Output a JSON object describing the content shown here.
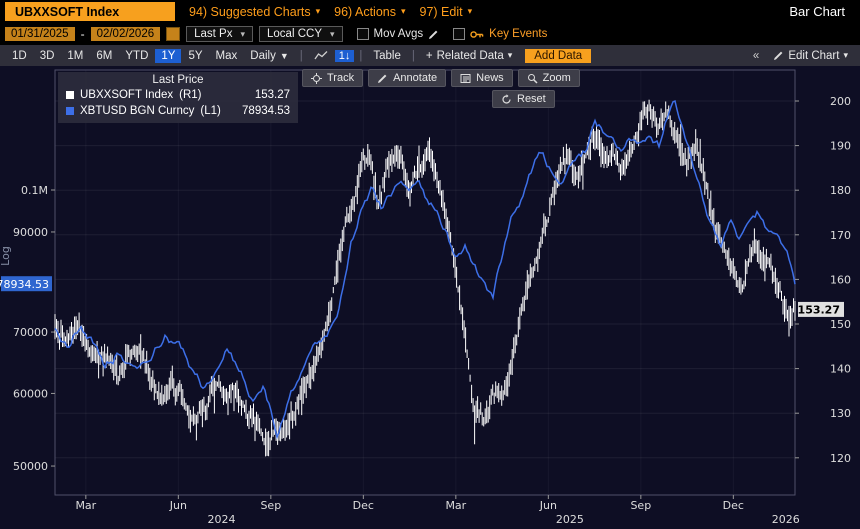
{
  "titlebar": {
    "security": "UBXXSOFT Index",
    "menus": [
      {
        "label": "94) Suggested Charts"
      },
      {
        "label": "96) Actions"
      },
      {
        "label": "97) Edit"
      }
    ],
    "view_name": "Bar Chart"
  },
  "controls": {
    "date_from": "01/31/2025",
    "date_separator": "-",
    "date_to": "02/02/2026",
    "price_field": "Last Px",
    "currency": "Local CCY",
    "mov_avgs_label": "Mov Avgs",
    "key_events_label": "Key Events"
  },
  "toolbar": {
    "ranges": [
      "1D",
      "3D",
      "1M",
      "6M",
      "YTD",
      "1Y",
      "5Y",
      "Max"
    ],
    "selected_range": "1Y",
    "period": "Daily",
    "bar_style_label": "1↓",
    "table_label": "Table",
    "related_data_label": "Related Data",
    "add_data_label": "Add Data",
    "edit_chart_label": "Edit Chart"
  },
  "chart_tools": {
    "track": "Track",
    "annotate": "Annotate",
    "news": "News",
    "zoom": "Zoom",
    "reset": "Reset"
  },
  "legend": {
    "title": "Last Price",
    "series": [
      {
        "name": "UBXXSOFT Index",
        "axis": "(R1)",
        "value": "153.27",
        "color": "#ffffff"
      },
      {
        "name": "XBTUSD BGN Curncy",
        "axis": "(L1)",
        "value": "78934.53",
        "color": "#3d6fe8"
      }
    ]
  },
  "colors": {
    "amber": "#f7a01e",
    "selected_blue": "#1d5fd2",
    "badge_blue": "#2f66d0",
    "chart_bg": "#0e0e24"
  },
  "chart_data": {
    "type": "line",
    "title": "Last Price",
    "x_axis": {
      "range_months": 24,
      "ticks": [
        {
          "label": "Mar",
          "t": 1
        },
        {
          "label": "Jun",
          "t": 4
        },
        {
          "label": "Sep",
          "t": 7
        },
        {
          "label": "Dec",
          "t": 10
        },
        {
          "label": "Mar",
          "t": 13
        },
        {
          "label": "Jun",
          "t": 16
        },
        {
          "label": "Sep",
          "t": 19
        },
        {
          "label": "Dec",
          "t": 22
        }
      ],
      "years": [
        {
          "label": "2024",
          "t": 5.4
        },
        {
          "label": "2025",
          "t": 16.7
        },
        {
          "label": "2026",
          "t": 23.7
        }
      ]
    },
    "left_axis": {
      "scale": "log",
      "scale_label": "Log",
      "ticks": [
        {
          "label": "0.1M",
          "v": 100000
        },
        {
          "label": "90000",
          "v": 90000
        },
        {
          "label": "70000",
          "v": 70000
        },
        {
          "label": "60000",
          "v": 60000
        },
        {
          "label": "50000",
          "v": 50000
        }
      ],
      "last_value": 78934.53,
      "last_label": "78934.53"
    },
    "right_axis": {
      "scale": "linear",
      "ticks": [
        200,
        190,
        180,
        170,
        160,
        150,
        140,
        130,
        120
      ],
      "last_value": 153.27,
      "last_label": "153.27"
    },
    "series": [
      {
        "name": "UBXXSOFT Index",
        "axis": "R1",
        "style": "bars",
        "color": "#ffffff",
        "anchors": [
          [
            0,
            151
          ],
          [
            0.4,
            146
          ],
          [
            0.8,
            149
          ],
          [
            1.2,
            143
          ],
          [
            1.6,
            145
          ],
          [
            2,
            141
          ],
          [
            2.5,
            143
          ],
          [
            3,
            138
          ],
          [
            3.4,
            135
          ],
          [
            3.8,
            137
          ],
          [
            4.2,
            133
          ],
          [
            4.6,
            131
          ],
          [
            5,
            136
          ],
          [
            5.4,
            139
          ],
          [
            5.8,
            137
          ],
          [
            6.2,
            133
          ],
          [
            6.6,
            128
          ],
          [
            7,
            125
          ],
          [
            7.4,
            129
          ],
          [
            7.8,
            132
          ],
          [
            8.2,
            136
          ],
          [
            8.6,
            142
          ],
          [
            9,
            155
          ],
          [
            9.4,
            170
          ],
          [
            9.8,
            180
          ],
          [
            10.2,
            186
          ],
          [
            10.5,
            178
          ],
          [
            10.8,
            184
          ],
          [
            11.2,
            189
          ],
          [
            11.5,
            181
          ],
          [
            11.8,
            186
          ],
          [
            12.1,
            191
          ],
          [
            12.4,
            183
          ],
          [
            12.7,
            174
          ],
          [
            13,
            163
          ],
          [
            13.3,
            148
          ],
          [
            13.6,
            133
          ],
          [
            13.9,
            129
          ],
          [
            14.2,
            136
          ],
          [
            14.5,
            132
          ],
          [
            14.8,
            141
          ],
          [
            15.1,
            150
          ],
          [
            15.4,
            158
          ],
          [
            15.7,
            166
          ],
          [
            16,
            174
          ],
          [
            16.3,
            182
          ],
          [
            16.6,
            188
          ],
          [
            16.9,
            181
          ],
          [
            17.2,
            187
          ],
          [
            17.5,
            193
          ],
          [
            17.8,
            187
          ],
          [
            18.1,
            191
          ],
          [
            18.4,
            185
          ],
          [
            18.7,
            189
          ],
          [
            19,
            194
          ],
          [
            19.3,
            198
          ],
          [
            19.6,
            193
          ],
          [
            19.9,
            197
          ],
          [
            20.2,
            191
          ],
          [
            20.5,
            186
          ],
          [
            20.8,
            190
          ],
          [
            21.1,
            181
          ],
          [
            21.4,
            174
          ],
          [
            21.7,
            170
          ],
          [
            22,
            165
          ],
          [
            22.3,
            160
          ],
          [
            22.6,
            170
          ],
          [
            22.9,
            166
          ],
          [
            23.2,
            161
          ],
          [
            23.5,
            156
          ],
          [
            23.8,
            149
          ],
          [
            24,
            153.27
          ]
        ]
      },
      {
        "name": "XBTUSD BGN Curncy",
        "axis": "L1",
        "style": "line",
        "color": "#3d6fe8",
        "anchors": [
          [
            0,
            70000
          ],
          [
            0.4,
            67000
          ],
          [
            0.8,
            71500
          ],
          [
            1.2,
            69000
          ],
          [
            1.6,
            64500
          ],
          [
            2,
            66500
          ],
          [
            2.4,
            63500
          ],
          [
            2.8,
            64500
          ],
          [
            3.2,
            67500
          ],
          [
            3.6,
            70500
          ],
          [
            4,
            68000
          ],
          [
            4.4,
            64000
          ],
          [
            4.8,
            61000
          ],
          [
            5.2,
            64500
          ],
          [
            5.6,
            67500
          ],
          [
            6,
            64000
          ],
          [
            6.4,
            59000
          ],
          [
            6.8,
            60500
          ],
          [
            7.2,
            54500
          ],
          [
            7.6,
            60000
          ],
          [
            8,
            63500
          ],
          [
            8.4,
            67000
          ],
          [
            8.8,
            69500
          ],
          [
            9.2,
            75000
          ],
          [
            9.6,
            88000
          ],
          [
            10,
            97000
          ],
          [
            10.3,
            101500
          ],
          [
            10.6,
            96000
          ],
          [
            10.9,
            99500
          ],
          [
            11.2,
            104500
          ],
          [
            11.5,
            102000
          ],
          [
            11.8,
            105000
          ],
          [
            12.1,
            97500
          ],
          [
            12.4,
            96500
          ],
          [
            12.7,
            91000
          ],
          [
            13,
            84000
          ],
          [
            13.3,
            87500
          ],
          [
            13.6,
            82500
          ],
          [
            13.9,
            79000
          ],
          [
            14.2,
            76800
          ],
          [
            14.5,
            85000
          ],
          [
            14.8,
            94500
          ],
          [
            15.1,
            97500
          ],
          [
            15.4,
            103500
          ],
          [
            15.7,
            109000
          ],
          [
            16,
            105500
          ],
          [
            16.3,
            101500
          ],
          [
            16.6,
            104500
          ],
          [
            16.9,
            107500
          ],
          [
            17.2,
            110000
          ],
          [
            17.5,
            118000
          ],
          [
            17.8,
            116000
          ],
          [
            18.1,
            113000
          ],
          [
            18.4,
            109500
          ],
          [
            18.7,
            112500
          ],
          [
            19,
            111500
          ],
          [
            19.3,
            115500
          ],
          [
            19.6,
            113000
          ],
          [
            19.9,
            122000
          ],
          [
            20.1,
            124500
          ],
          [
            20.4,
            116000
          ],
          [
            20.7,
            107000
          ],
          [
            21,
            99500
          ],
          [
            21.3,
            92000
          ],
          [
            21.6,
            86500
          ],
          [
            21.9,
            90500
          ],
          [
            22.2,
            87000
          ],
          [
            22.5,
            92500
          ],
          [
            22.8,
            95500
          ],
          [
            23.1,
            90000
          ],
          [
            23.4,
            87500
          ],
          [
            23.7,
            84000
          ],
          [
            23.9,
            80500
          ],
          [
            24,
            78934.53
          ]
        ]
      }
    ]
  }
}
